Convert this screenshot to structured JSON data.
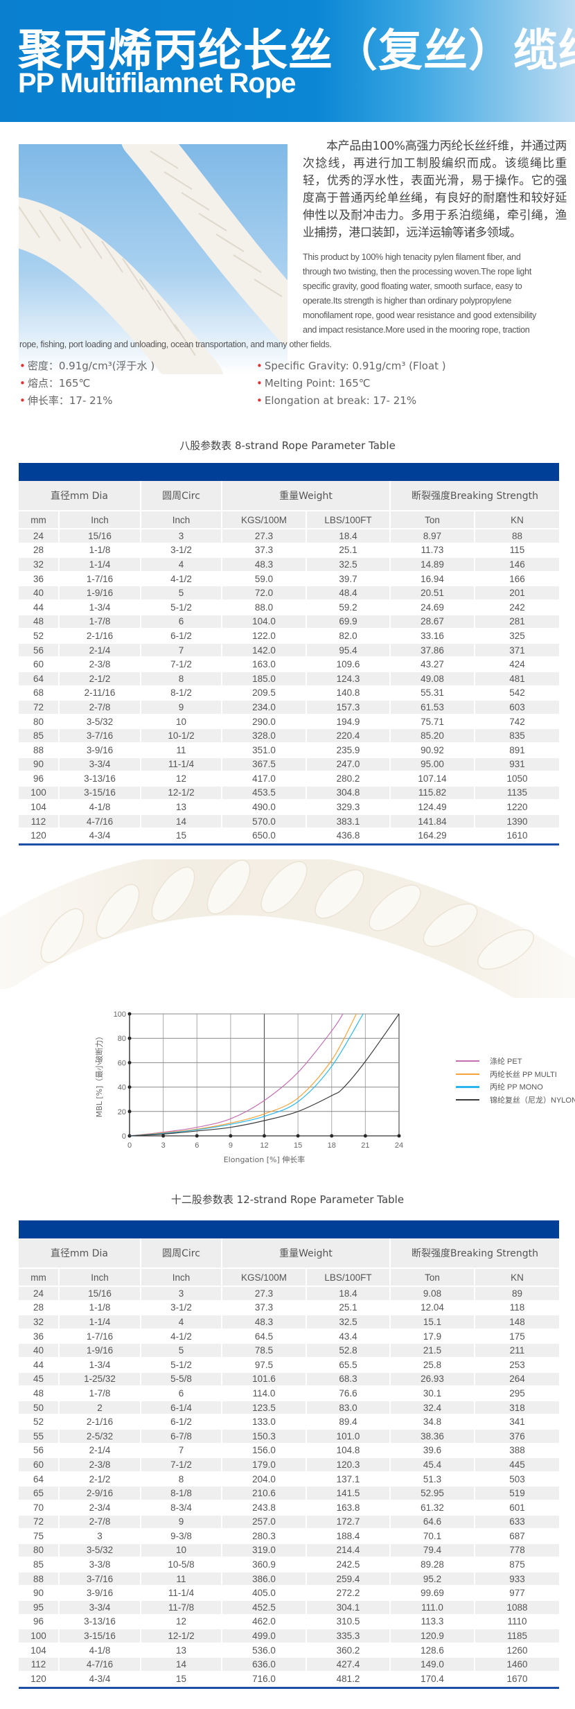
{
  "header": {
    "title_cn": "聚丙烯丙纶长丝（复丝）缆绳",
    "title_en": "PP Multifilamnet Rope"
  },
  "intro": {
    "cn": "本产品由100%高强力丙纶长丝纤维，并通过两次捻线，再进行加工制股编织而成。该缆绳比重轻，优秀的浮水性，表面光滑，易于操作。它的强度高于普通丙纶单丝绳，有良好的耐磨性和较好延伸性以及耐冲击力。多用于系泊缆绳，牵引绳，渔业捕捞，港口装卸，远洋运输等诸多领域。",
    "en_lines": [
      "This product by 100% high tenacity pylen filament fiber, and",
      "through two twisting, then the processing woven.The rope light",
      "specific gravity, good floating water, smooth surface, easy to",
      "operate.Its strength is higher than ordinary polypropylene",
      "monofilament rope, good wear resistance and good extensibility",
      "and impact resistance.More used in the mooring rope, traction"
    ],
    "en_last": "rope, fishing, port loading and unloading, ocean transportation, and many other fields."
  },
  "specs_cn": [
    "密度：0.91g/cm³(浮于水 )",
    "熔点：165℃",
    "伸长率：17- 21%"
  ],
  "specs_en": [
    "Specific Gravity: 0.91g/cm³ (Float )",
    "Melting Point: 165℃",
    "Elongation at break: 17- 21%"
  ],
  "table_headers": {
    "group": [
      "直径mm Dia",
      "圆周Circ",
      "重量Weight",
      "断裂强度Breaking Strength"
    ],
    "sub": [
      "mm",
      "Inch",
      "Inch",
      "KGS/100M",
      "LBS/100FT",
      "Ton",
      "KN"
    ]
  },
  "table8": {
    "title": "八股参数表   8-strand Rope Parameter Table",
    "rows": [
      [
        "24",
        "15/16",
        "3",
        "27.3",
        "18.4",
        "8.97",
        "88"
      ],
      [
        "28",
        "1-1/8",
        "3-1/2",
        "37.3",
        "25.1",
        "11.73",
        "115"
      ],
      [
        "32",
        "1-1/4",
        "4",
        "48.3",
        "32.5",
        "14.89",
        "146"
      ],
      [
        "36",
        "1-7/16",
        "4-1/2",
        "59.0",
        "39.7",
        "16.94",
        "166"
      ],
      [
        "40",
        "1-9/16",
        "5",
        "72.0",
        "48.4",
        "20.51",
        "201"
      ],
      [
        "44",
        "1-3/4",
        "5-1/2",
        "88.0",
        "59.2",
        "24.69",
        "242"
      ],
      [
        "48",
        "1-7/8",
        "6",
        "104.0",
        "69.9",
        "28.67",
        "281"
      ],
      [
        "52",
        "2-1/16",
        "6-1/2",
        "122.0",
        "82.0",
        "33.16",
        "325"
      ],
      [
        "56",
        "2-1/4",
        "7",
        "142.0",
        "95.4",
        "37.86",
        "371"
      ],
      [
        "60",
        "2-3/8",
        "7-1/2",
        "163.0",
        "109.6",
        "43.27",
        "424"
      ],
      [
        "64",
        "2-1/2",
        "8",
        "185.0",
        "124.3",
        "49.08",
        "481"
      ],
      [
        "68",
        "2-11/16",
        "8-1/2",
        "209.5",
        "140.8",
        "55.31",
        "542"
      ],
      [
        "72",
        "2-7/8",
        "9",
        "234.0",
        "157.3",
        "61.53",
        "603"
      ],
      [
        "80",
        "3-5/32",
        "10",
        "290.0",
        "194.9",
        "75.71",
        "742"
      ],
      [
        "85",
        "3-7/16",
        "10-1/2",
        "328.0",
        "220.4",
        "85.20",
        "835"
      ],
      [
        "88",
        "3-9/16",
        "11",
        "351.0",
        "235.9",
        "90.92",
        "891"
      ],
      [
        "90",
        "3-3/4",
        "11-1/4",
        "367.5",
        "247.0",
        "95.00",
        "931"
      ],
      [
        "96",
        "3-13/16",
        "12",
        "417.0",
        "280.2",
        "107.14",
        "1050"
      ],
      [
        "100",
        "3-15/16",
        "12-1/2",
        "453.5",
        "304.8",
        "115.82",
        "1135"
      ],
      [
        "104",
        "4-1/8",
        "13",
        "490.0",
        "329.3",
        "124.49",
        "1220"
      ],
      [
        "112",
        "4-7/16",
        "14",
        "570.0",
        "383.1",
        "141.84",
        "1390"
      ],
      [
        "120",
        "4-3/4",
        "15",
        "650.0",
        "436.8",
        "164.29",
        "1610"
      ]
    ]
  },
  "table12": {
    "title": "十二股参数表   12-strand Rope Parameter Table",
    "rows": [
      [
        "24",
        "15/16",
        "3",
        "27.3",
        "18.4",
        "9.08",
        "89"
      ],
      [
        "28",
        "1-1/8",
        "3-1/2",
        "37.3",
        "25.1",
        "12.04",
        "118"
      ],
      [
        "32",
        "1-1/4",
        "4",
        "48.3",
        "32.5",
        "15.1",
        "148"
      ],
      [
        "36",
        "1-7/16",
        "4-1/2",
        "64.5",
        "43.4",
        "17.9",
        "175"
      ],
      [
        "40",
        "1-9/16",
        "5",
        "78.5",
        "52.8",
        "21.5",
        "211"
      ],
      [
        "44",
        "1-3/4",
        "5-1/2",
        "97.5",
        "65.5",
        "25.8",
        "253"
      ],
      [
        "45",
        "1-25/32",
        "5-5/8",
        "101.6",
        "68.3",
        "26.93",
        "264"
      ],
      [
        "48",
        "1-7/8",
        "6",
        "114.0",
        "76.6",
        "30.1",
        "295"
      ],
      [
        "50",
        "2",
        "6-1/4",
        "123.5",
        "83.0",
        "32.4",
        "318"
      ],
      [
        "52",
        "2-1/16",
        "6-1/2",
        "133.0",
        "89.4",
        "34.8",
        "341"
      ],
      [
        "55",
        "2-5/32",
        "6-7/8",
        "150.3",
        "101.0",
        "38.36",
        "376"
      ],
      [
        "56",
        "2-1/4",
        "7",
        "156.0",
        "104.8",
        "39.6",
        "388"
      ],
      [
        "60",
        "2-3/8",
        "7-1/2",
        "179.0",
        "120.3",
        "45.4",
        "445"
      ],
      [
        "64",
        "2-1/2",
        "8",
        "204.0",
        "137.1",
        "51.3",
        "503"
      ],
      [
        "65",
        "2-9/16",
        "8-1/8",
        "210.6",
        "141.5",
        "52.95",
        "519"
      ],
      [
        "70",
        "2-3/4",
        "8-3/4",
        "243.8",
        "163.8",
        "61.32",
        "601"
      ],
      [
        "72",
        "2-7/8",
        "9",
        "257.0",
        "172.7",
        "64.6",
        "633"
      ],
      [
        "75",
        "3",
        "9-3/8",
        "280.3",
        "188.4",
        "70.1",
        "687"
      ],
      [
        "80",
        "3-5/32",
        "10",
        "319.0",
        "214.4",
        "79.4",
        "778"
      ],
      [
        "85",
        "3-3/8",
        "10-5/8",
        "360.9",
        "242.5",
        "89.28",
        "875"
      ],
      [
        "88",
        "3-7/16",
        "11",
        "386.0",
        "259.4",
        "95.2",
        "933"
      ],
      [
        "90",
        "3-9/16",
        "11-1/4",
        "405.0",
        "272.2",
        "99.69",
        "977"
      ],
      [
        "95",
        "3-3/4",
        "11-7/8",
        "452.5",
        "304.1",
        "111.0",
        "1088"
      ],
      [
        "96",
        "3-13/16",
        "12",
        "462.0",
        "310.5",
        "113.3",
        "1110"
      ],
      [
        "100",
        "3-15/16",
        "12-1/2",
        "499.0",
        "335.3",
        "120.9",
        "1185"
      ],
      [
        "104",
        "4-1/8",
        "13",
        "536.0",
        "360.2",
        "128.6",
        "1260"
      ],
      [
        "112",
        "4-7/16",
        "14",
        "636.0",
        "427.4",
        "149.0",
        "1460"
      ],
      [
        "120",
        "4-3/4",
        "15",
        "716.0",
        "481.2",
        "170.4",
        "1670"
      ]
    ]
  },
  "chart_data": {
    "type": "line",
    "xlabel": "Elongation [%] 伸长率",
    "ylabel": "MBL [%]（最小破断力）",
    "xlim": [
      0,
      24
    ],
    "ylim": [
      0,
      100
    ],
    "xticks": [
      0,
      3,
      6,
      9,
      12,
      15,
      18,
      21,
      24
    ],
    "yticks": [
      0,
      20,
      40,
      60,
      80,
      100
    ],
    "grid": true,
    "legend": "right",
    "series": [
      {
        "name": "涤纶 PET",
        "color": "#c46fb2",
        "x": [
          0,
          3,
          6,
          9,
          12,
          15,
          18,
          19
        ],
        "y": [
          0,
          3,
          7,
          14,
          29,
          52,
          86,
          100
        ]
      },
      {
        "name": "丙纶长丝 PP MULTI",
        "color": "#f7a23a",
        "x": [
          0,
          3,
          6,
          9,
          12,
          15,
          18,
          20.2
        ],
        "y": [
          0,
          2.5,
          5.5,
          10.5,
          18,
          31,
          62,
          100
        ]
      },
      {
        "name": "丙纶 PP MONO",
        "color": "#2cb6ee",
        "x": [
          0,
          3,
          6,
          9,
          12,
          15,
          18,
          20.8
        ],
        "y": [
          0,
          2,
          5,
          9.5,
          16,
          28,
          57,
          100
        ]
      },
      {
        "name": "锦纶复丝（尼龙）NYLON",
        "color": "#3a3a3a",
        "x": [
          0,
          3,
          6,
          9,
          12,
          15,
          18,
          19,
          21,
          24
        ],
        "y": [
          0,
          1.5,
          4,
          7,
          12.5,
          20,
          33,
          39,
          61,
          100
        ]
      }
    ]
  }
}
